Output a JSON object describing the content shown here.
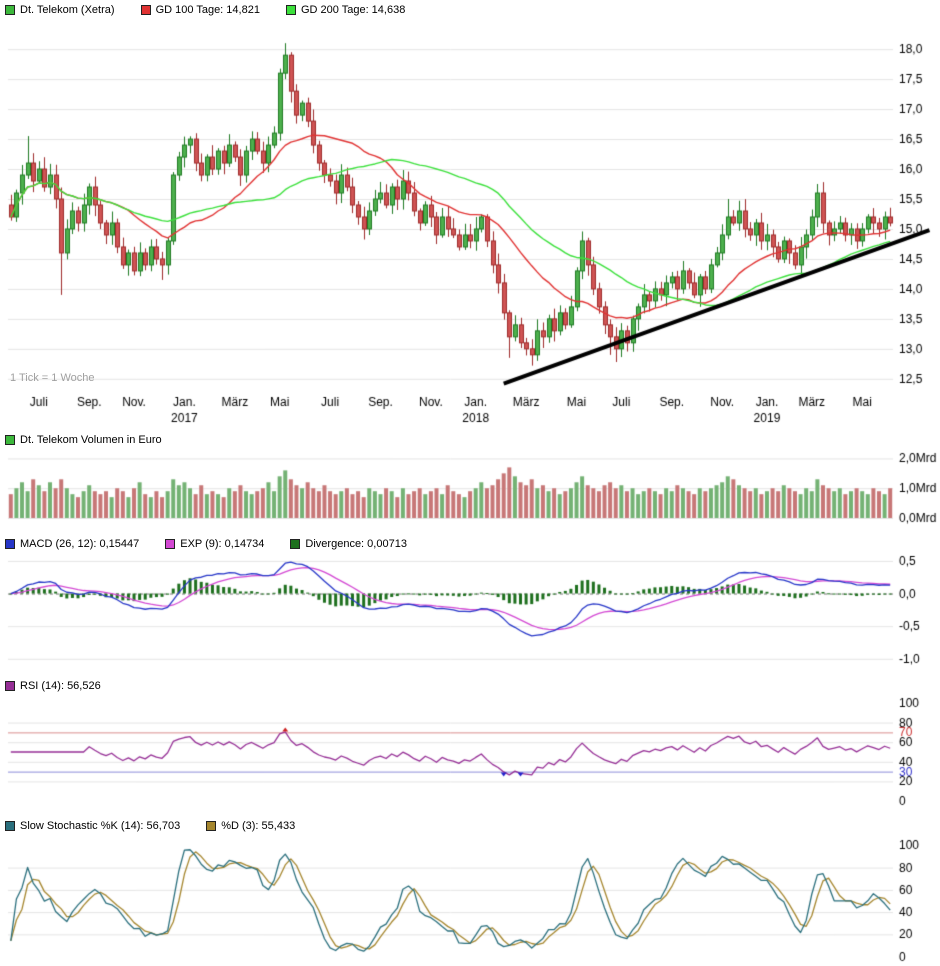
{
  "header": {
    "items": [
      {
        "label": "Dt. Telekom (Xetra)",
        "color": "#3cb83c"
      },
      {
        "label": "GD 100 Tage: 14,821",
        "color": "#e03232"
      },
      {
        "label": "GD 200 Tage: 14,638",
        "color": "#3ce03c"
      }
    ]
  },
  "volume_legend": {
    "label": "Dt. Telekom Volumen in Euro",
    "color": "#3cb83c"
  },
  "macd_legend": {
    "items": [
      {
        "label": "MACD (26, 12): 0,15447",
        "color": "#2636c8"
      },
      {
        "label": "EXP (9): 0,14734",
        "color": "#d348d3"
      },
      {
        "label": "Divergence: 0,00713",
        "color": "#1d6f1d"
      }
    ]
  },
  "rsi_legend": {
    "label": "RSI (14): 56,526",
    "color": "#952e95"
  },
  "stoch_legend": {
    "items": [
      {
        "label": "Slow Stochastic %K (14): 56,703",
        "color": "#2a6f7d"
      },
      {
        "label": "%D (3): 55,433",
        "color": "#a5862e"
      }
    ]
  },
  "tick_note": "1 Tick = 1 Woche",
  "chart_data": [
    {
      "type": "candlestick",
      "name": "price",
      "title": "Dt. Telekom (Xetra)",
      "x_tick_indices": [
        5,
        14,
        22,
        31,
        40,
        48,
        57,
        66,
        75,
        83,
        92,
        101,
        109,
        118,
        127,
        135,
        143,
        152
      ],
      "x_tick_labels": [
        "Juli",
        "Sep.",
        "Nov.",
        "Jan.",
        "März",
        "Mai",
        "Juli",
        "Sep.",
        "Nov.",
        "Jan.",
        "März",
        "Mai",
        "Juli",
        "Sep.",
        "Nov.",
        "Jan.",
        "März",
        "Mai"
      ],
      "year_labels": [
        {
          "index": 31,
          "label": "2017"
        },
        {
          "index": 83,
          "label": "2018"
        },
        {
          "index": 135,
          "label": "2019"
        }
      ],
      "closes": [
        15.2,
        15.6,
        15.9,
        16.1,
        15.8,
        16.0,
        15.7,
        15.9,
        15.5,
        14.6,
        15.0,
        15.3,
        15.1,
        15.4,
        15.7,
        15.4,
        15.1,
        14.9,
        15.1,
        14.7,
        14.4,
        14.6,
        14.3,
        14.6,
        14.4,
        14.7,
        14.5,
        14.4,
        14.8,
        15.9,
        16.2,
        16.4,
        16.5,
        16.1,
        15.9,
        16.2,
        16.0,
        16.3,
        16.1,
        16.4,
        16.2,
        15.9,
        16.3,
        16.5,
        16.3,
        16.1,
        16.4,
        16.6,
        17.6,
        17.9,
        17.3,
        16.9,
        17.1,
        16.8,
        16.4,
        16.1,
        15.9,
        15.8,
        15.6,
        15.9,
        15.7,
        15.4,
        15.2,
        15.0,
        15.3,
        15.5,
        15.6,
        15.4,
        15.7,
        15.5,
        15.8,
        15.6,
        15.3,
        15.1,
        15.4,
        15.2,
        14.9,
        15.2,
        15.0,
        14.9,
        14.7,
        14.9,
        14.8,
        15.0,
        15.2,
        14.8,
        14.4,
        14.1,
        13.6,
        13.2,
        13.4,
        13.1,
        13.0,
        12.9,
        13.3,
        13.2,
        13.5,
        13.3,
        13.6,
        13.4,
        13.7,
        14.3,
        14.8,
        14.4,
        14.0,
        13.7,
        13.4,
        13.2,
        13.0,
        13.3,
        13.1,
        13.5,
        13.7,
        13.9,
        13.8,
        14.0,
        13.9,
        14.1,
        14.2,
        14.0,
        14.3,
        14.1,
        13.9,
        14.2,
        14.0,
        14.4,
        14.6,
        14.9,
        15.2,
        15.1,
        15.3,
        15.0,
        14.9,
        15.1,
        14.8,
        14.9,
        14.7,
        14.5,
        14.8,
        14.6,
        14.4,
        14.7,
        14.9,
        15.2,
        15.6,
        15.1,
        14.9,
        15.0,
        15.1,
        14.9,
        15.0,
        14.8,
        15.0,
        15.2,
        15.1,
        15.0,
        15.2,
        15.1
      ],
      "wick_overrides": {
        "3": {
          "high": 16.55
        },
        "9": {
          "low": 13.9
        },
        "27": {
          "low": 14.15
        },
        "49": {
          "high": 18.1
        },
        "89": {
          "low": 12.85
        },
        "93": {
          "low": 12.72
        },
        "94": {
          "low": 12.8
        },
        "107": {
          "low": 12.9
        },
        "108": {
          "low": 12.78
        },
        "128": {
          "high": 15.5
        },
        "144": {
          "high": 15.75
        }
      },
      "ma100": {
        "label": "GD 100 Tage",
        "value": "14,821",
        "window_weeks": 20,
        "color": "#e03232"
      },
      "ma200": {
        "label": "GD 200 Tage",
        "value": "14,638",
        "window_weeks": 40,
        "color": "#3ce03c"
      },
      "trendline": {
        "start_index": 88,
        "start_price": 12.42,
        "end_index": 164,
        "end_price": 14.98
      },
      "ylim": [
        12.38,
        18.32
      ],
      "y_ticks": [
        {
          "v": 18.0,
          "label": "18,0"
        },
        {
          "v": 17.5,
          "label": "17,5"
        },
        {
          "v": 17.0,
          "label": "17,0"
        },
        {
          "v": 16.5,
          "label": "16,5"
        },
        {
          "v": 16.0,
          "label": "16,0"
        },
        {
          "v": 15.5,
          "label": "15,5"
        },
        {
          "v": 15.0,
          "label": "15,0"
        },
        {
          "v": 14.5,
          "label": "14,5"
        },
        {
          "v": 14.0,
          "label": "14,0"
        },
        {
          "v": 13.5,
          "label": "13,5"
        },
        {
          "v": 13.0,
          "label": "13,0"
        },
        {
          "v": 12.5,
          "label": "12,5"
        }
      ]
    },
    {
      "type": "bar",
      "name": "volume",
      "title": "Dt. Telekom Volumen in Euro",
      "values_mrd": [
        0.8,
        1.0,
        1.2,
        0.9,
        1.3,
        1.1,
        0.9,
        1.2,
        1.0,
        1.3,
        1.0,
        0.8,
        0.7,
        0.9,
        1.1,
        0.9,
        0.8,
        0.9,
        0.7,
        1.0,
        0.9,
        0.7,
        1.0,
        1.2,
        0.8,
        0.7,
        0.9,
        0.7,
        0.9,
        1.3,
        1.1,
        1.2,
        1.0,
        0.8,
        1.1,
        0.8,
        0.9,
        0.8,
        0.7,
        1.0,
        0.9,
        1.1,
        0.9,
        0.8,
        0.9,
        1.0,
        1.2,
        0.9,
        1.4,
        1.6,
        1.3,
        1.1,
        1.0,
        1.2,
        1.0,
        0.9,
        1.1,
        0.9,
        0.8,
        0.9,
        1.0,
        0.8,
        0.9,
        0.7,
        1.0,
        0.9,
        0.8,
        1.0,
        0.9,
        0.7,
        1.0,
        0.8,
        0.9,
        1.0,
        0.8,
        0.9,
        1.0,
        0.8,
        1.1,
        0.9,
        0.8,
        0.7,
        0.9,
        1.0,
        1.2,
        1.0,
        1.1,
        1.3,
        1.5,
        1.7,
        1.4,
        1.2,
        1.1,
        1.3,
        1.0,
        1.1,
        0.9,
        1.0,
        0.8,
        0.9,
        1.0,
        1.2,
        1.4,
        1.1,
        1.0,
        0.9,
        1.1,
        1.2,
        1.0,
        1.1,
        0.9,
        1.0,
        0.8,
        0.9,
        1.0,
        0.9,
        0.8,
        1.0,
        0.9,
        1.1,
        1.0,
        0.9,
        0.8,
        1.0,
        0.9,
        1.0,
        1.1,
        1.2,
        1.4,
        1.3,
        1.1,
        1.0,
        0.9,
        1.0,
        0.8,
        0.9,
        1.0,
        0.9,
        1.1,
        1.0,
        0.9,
        0.8,
        1.0,
        0.9,
        1.3,
        1.1,
        1.0,
        0.9,
        1.0,
        0.8,
        0.9,
        1.0,
        0.9,
        0.8,
        1.0,
        0.9,
        0.8,
        1.0
      ],
      "ylim": [
        0,
        2.15
      ],
      "y_ticks": [
        {
          "v": 2,
          "label": "2,0Mrd"
        },
        {
          "v": 1,
          "label": "1,0Mrd"
        },
        {
          "v": 0,
          "label": "0,0Mrd"
        }
      ]
    },
    {
      "type": "line",
      "name": "macd",
      "params": {
        "fast": 12,
        "slow": 26,
        "signal": 9
      },
      "last_values": {
        "macd": "0,15447",
        "signal": "0,14734",
        "divergence": "0,00713"
      },
      "ylim": [
        -1.08,
        0.56
      ],
      "y_ticks": [
        {
          "v": 0.5,
          "label": "0,5"
        },
        {
          "v": 0,
          "label": "0,0"
        },
        {
          "v": -0.5,
          "label": "-0,5"
        },
        {
          "v": -1,
          "label": "-1,0"
        }
      ]
    },
    {
      "type": "line",
      "name": "rsi",
      "params": {
        "period": 14
      },
      "last_value": "56,526",
      "overbought": 70,
      "oversold": 30,
      "ylim": [
        -3,
        103
      ],
      "y_ticks": [
        {
          "v": 100,
          "label": "100"
        },
        {
          "v": 80,
          "label": "80"
        },
        {
          "v": 70,
          "label": "70",
          "color": "#cc3333"
        },
        {
          "v": 60,
          "label": "60"
        },
        {
          "v": 40,
          "label": "40"
        },
        {
          "v": 30,
          "label": "30",
          "color": "#3333cc"
        },
        {
          "v": 20,
          "label": "20"
        },
        {
          "v": 0,
          "label": "0"
        }
      ]
    },
    {
      "type": "line",
      "name": "stochastic",
      "params": {
        "k": 14,
        "d": 3
      },
      "last_values": {
        "k": "56,703",
        "d": "55,433"
      },
      "ylim": [
        -3,
        103
      ],
      "y_ticks": [
        {
          "v": 100,
          "label": "100"
        },
        {
          "v": 80,
          "label": "80"
        },
        {
          "v": 60,
          "label": "60"
        },
        {
          "v": 40,
          "label": "40"
        },
        {
          "v": 20,
          "label": "20"
        },
        {
          "v": 0,
          "label": "0"
        }
      ]
    }
  ]
}
